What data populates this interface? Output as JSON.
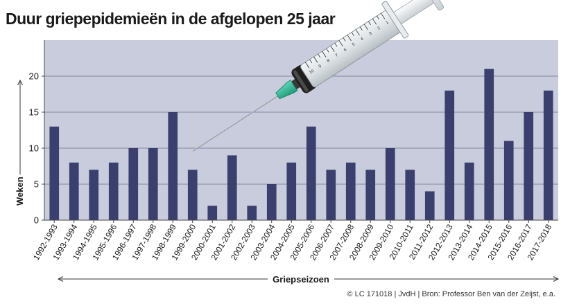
{
  "chart_data": {
    "type": "bar",
    "title": "Duur griepepidemieën in de afgelopen 25 jaar",
    "xlabel": "Griepseizoen",
    "ylabel": "Weken",
    "ylim": [
      0,
      25
    ],
    "yticks": [
      0,
      5,
      10,
      15,
      20
    ],
    "grid": true,
    "categories": [
      "1992-1993",
      "1993-1994",
      "1994-1995",
      "1995-1996",
      "1996-1997",
      "1997-1998",
      "1998-1999",
      "1999-2000",
      "2000-2001",
      "2001-2002",
      "2002-2003",
      "2003-2004",
      "2004-2005",
      "2005-2006",
      "2006-2007",
      "2007-2008",
      "2008-2009",
      "2009-2010",
      "2010-2011",
      "2011-2012",
      "2012-2013",
      "2013-2014",
      "2014-2015",
      "2015-2016",
      "2016-2017",
      "2017-2018"
    ],
    "values": [
      13,
      8,
      7,
      8,
      10,
      10,
      15,
      7,
      2,
      9,
      2,
      5,
      8,
      13,
      7,
      8,
      7,
      10,
      7,
      4,
      18,
      8,
      21,
      11,
      15,
      18
    ],
    "bar_color": "#3a3f6e",
    "source": "© LC 171018 | JvdH | Bron: Professor Ben van der Zeijst, e.a."
  },
  "illustration": {
    "name": "syringe",
    "barrel_labels": [
      "10",
      "9",
      "8",
      "7",
      "6",
      "5",
      "4",
      "3",
      "2",
      "1"
    ]
  }
}
